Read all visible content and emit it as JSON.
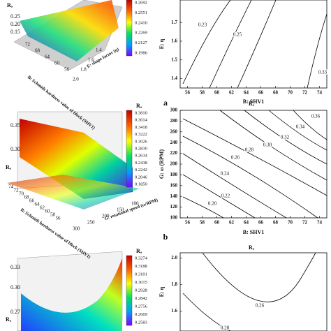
{
  "panels": [
    {
      "label": "a",
      "surface": {
        "z_label": "Rₐ",
        "z_ticks": [
          "0.25",
          "0.20",
          "0.15"
        ],
        "x_ticks": [
          "72",
          "68",
          "64",
          "60",
          "56"
        ],
        "y_ticks": [
          "1.4",
          "1.6",
          "1.8",
          "2.0"
        ],
        "x_label": "B: Schmidt hardness value of block (SHV1)",
        "y_label": "E: shape factor (η)",
        "colorbar_ticks": [
          "0.2692",
          "0.2551",
          "0.2410",
          "0.2269",
          "0.2127",
          "0.1986"
        ]
      },
      "contour": {
        "y_label": "E: η",
        "x_label": "B: SHV1",
        "ylim": [
          1.35,
          1.82
        ],
        "xlim": [
          55,
          75
        ],
        "yticks": [
          1.4,
          1.5,
          1.6,
          1.7
        ],
        "xticks": [
          56,
          58,
          60,
          62,
          64,
          66,
          68,
          70,
          72,
          74
        ],
        "contour_labels": [
          "0.23",
          "0.25",
          "0.33"
        ]
      }
    },
    {
      "label": "b",
      "surface": {
        "z_label": "Rₐ",
        "z_ticks": [
          "0.35",
          "0.30"
        ],
        "x_ticks": [
          "74",
          "72",
          "70",
          "68",
          "66",
          "64",
          "62",
          "60",
          "58",
          "56"
        ],
        "y_ticks": [
          "300",
          "250",
          "200",
          "150",
          "100"
        ],
        "x_label": "B: Schmidt hardness value of block (SHV1)",
        "y_label": "G: rotational speed (ω/RPM)",
        "colorbar_title": "Rₐ",
        "colorbar_ticks": [
          "0.3810",
          "0.3614",
          "0.3418",
          "0.3222",
          "0.3026",
          "0.2830",
          "0.2634",
          "0.2438",
          "0.2242",
          "0.2046",
          "0.1850"
        ]
      },
      "contour": {
        "title": "Rₐ",
        "y_label": "G: ω (RPM)",
        "x_label": "B: SHV1",
        "ylim": [
          100,
          300
        ],
        "xlim": [
          55,
          75
        ],
        "yticks": [
          100,
          120,
          140,
          160,
          180,
          200,
          220,
          240,
          260,
          280,
          300
        ],
        "xticks": [
          56,
          58,
          60,
          62,
          64,
          66,
          68,
          70,
          72,
          74
        ],
        "contour_labels": [
          "0.36",
          "0.34",
          "0.32",
          "0.30",
          "0.28",
          "0.26",
          "0.24",
          "0.22",
          "0.20"
        ]
      }
    },
    {
      "surface": {
        "z_label": "Rₐ",
        "z_ticks": [
          "0.33",
          "0.30",
          "0.27"
        ],
        "colorbar_title": "Rₐ",
        "colorbar_ticks": [
          "0.3274",
          "0.3188",
          "0.3101",
          "0.3015",
          "0.2928",
          "0.2842",
          "0.2756",
          "0.2669",
          "0.2583"
        ]
      },
      "contour": {
        "title": "Rₐ",
        "y_label": "E: η",
        "ylim": [
          1.45,
          2.04
        ],
        "yticks": [
          {
            "value": 2.0,
            "label": "2.0"
          },
          1.8,
          1.6
        ],
        "contour_labels": [
          "0.26",
          "0.28"
        ]
      }
    }
  ]
}
